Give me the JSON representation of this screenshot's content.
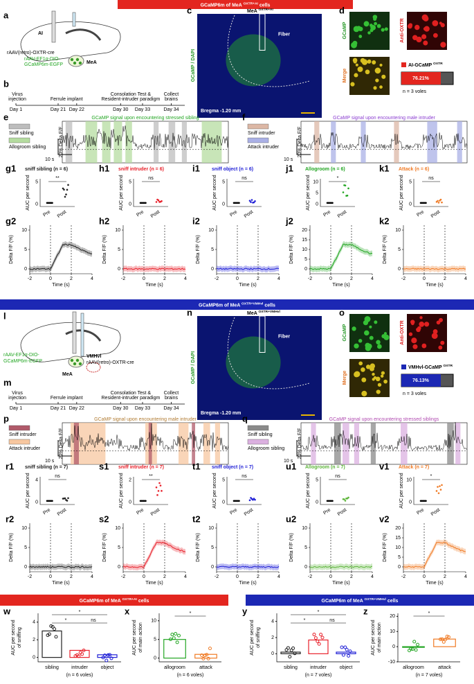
{
  "banners": {
    "top": {
      "pre": "GCaMP6m of MeA ",
      "sup": "OXTR+AI",
      "post": " cells"
    },
    "middle": {
      "pre": "GCaMP6m of MeA ",
      "sup": "OXTR+VMHvl",
      "post": " cells"
    },
    "bottom_left": {
      "pre": "GCaMP6m of MeA ",
      "sup": "OXTR+AI",
      "post": " cells"
    },
    "bottom_right": {
      "pre": "GCaMP6m of MeA ",
      "sup": "OXTR+VMHvl",
      "post": " cells"
    }
  },
  "panel_a": {
    "label": "a",
    "region": "AI",
    "virus1": "rAAV(retro)-OXTR-cre",
    "virus2a": "rAAV-EF1α-DIO-",
    "virus2b": "GCaMP6m-EGFP",
    "target": "MeA"
  },
  "panel_b": {
    "label": "b",
    "events": [
      "Virus",
      "injection",
      "Ferrule implant",
      "Consolation Test &",
      "Resident-intruder paradigm",
      "Collect",
      "brains"
    ],
    "days": [
      "Day 1",
      "Day 21",
      "Day 22",
      "Day 30",
      "Day 33",
      "Day 34"
    ]
  },
  "panel_c": {
    "label": "c",
    "title": "MeA ",
    "sup": "OXTR+AI",
    "stain": "GCaMP / DAPI",
    "fiber": "Fiber",
    "bregma": "Bregma -1.20 mm"
  },
  "panel_d": {
    "label": "d",
    "gcamp": "GCaMP",
    "anti": "Anti-OXTR",
    "merge": "Merge",
    "legend": "AI-GCaMP ",
    "legend_sup": "OXTR",
    "percent": "76.21%",
    "n": "n = 3 voles"
  },
  "panel_e": {
    "label": "e",
    "title": "GCaMP signal upon encountering stressed sibling",
    "legend": [
      "Sniff sibling",
      "Allogroom sibling"
    ],
    "colors": [
      "#bdbdbd",
      "#b5dca0"
    ],
    "scale_x": "10 s",
    "scale_y": "20% Delta F/F"
  },
  "panel_f": {
    "label": "f",
    "title": "GCaMP signal upon encountering male intruder",
    "legend": [
      "Sniff intruder",
      "Attack intruder"
    ],
    "colors": [
      "#dcb7a5",
      "#aab0e6"
    ],
    "scale_x": "10 s",
    "scale_y": "20% Delta F/F"
  },
  "common": {
    "auc": "AUC per second",
    "pre": "Pre",
    "post": "Post",
    "dff": "Delta F/F (%)",
    "time": "Time (s)",
    "xticks": [
      "-2",
      "0",
      "2",
      "4"
    ]
  },
  "row1": [
    {
      "label1": "g1",
      "label2": "g2",
      "title": "sniff sibling (n = 6)",
      "sig": "**",
      "color": "#222222",
      "inset_ticks": [
        "5",
        "0"
      ],
      "yticks": [
        "10",
        "5",
        "0"
      ]
    },
    {
      "label1": "h1",
      "label2": "h2",
      "title": "sniff intruder (n = 6)",
      "sig": "ns",
      "color": "#e8202a",
      "inset_ticks": [
        "5",
        "0"
      ],
      "yticks": [
        "10",
        "5",
        "0"
      ]
    },
    {
      "label1": "i1",
      "label2": "i2",
      "title": "sniff object (n = 6)",
      "sig": "ns",
      "color": "#1f1fd6",
      "inset_ticks": [
        "5",
        "0"
      ],
      "yticks": [
        "10",
        "5",
        "0"
      ]
    },
    {
      "label1": "j1",
      "label2": "j2",
      "title": "Allogroom (n = 6)",
      "sig": "*",
      "color": "#21a521",
      "inset_ticks": [
        "10",
        "5",
        "0"
      ],
      "yticks": [
        "20",
        "15",
        "10",
        "5",
        "0"
      ]
    },
    {
      "label1": "k1",
      "label2": "k2",
      "title": "Attack (n = 6)",
      "sig": "ns",
      "color": "#f07a24",
      "inset_ticks": [
        "5",
        "0"
      ],
      "yticks": [
        "10",
        "5",
        "0"
      ]
    }
  ],
  "panel_l": {
    "label": "l",
    "virus1a": "rAAV-EF1α-DIO-",
    "virus1b": "GCaMP6m-EGFP",
    "region": "VMHvl",
    "virus2": "rAAV(retro)-OXTR-cre",
    "target": "MeA"
  },
  "panel_m": {
    "label": "m",
    "events": [
      "Virus",
      "injection",
      "Ferrule implant",
      "Consolation Test &",
      "Resident-intruder paradigm",
      "Collect",
      "brains"
    ],
    "days": [
      "Day 1",
      "Day 21",
      "Day 22",
      "Day 30",
      "Day 33",
      "Day 34"
    ]
  },
  "panel_n": {
    "label": "n",
    "title": "MeA ",
    "sup": "OXTR+VMHvl",
    "stain": "GCaMP / DAPI",
    "fiber": "Fiber",
    "bregma": "Bregma -1.20 mm"
  },
  "panel_o": {
    "label": "o",
    "gcamp": "GCaMP",
    "anti": "Anti-OXTR",
    "merge": "Merge",
    "legend": "VMHvl-GCaMP ",
    "legend_sup": "OXTR",
    "percent": "76.13%",
    "n": "n = 3 voles"
  },
  "panel_p": {
    "label": "p",
    "title": "GCaMP signal upon encountering male intruder",
    "legend": [
      "Sniff  intruder",
      "Attack  intruder"
    ],
    "colors": [
      "#b05a6a",
      "#f7c7a0"
    ],
    "scale_x": "10 s",
    "scale_y": "20% Delta F/F"
  },
  "panel_q": {
    "label": "q",
    "title": "GCaMP signal upon encountering stressed siblings",
    "legend": [
      "Sniff sibling",
      "Allogroom sibling"
    ],
    "colors": [
      "#8a8a8a",
      "#dbb0e0"
    ],
    "scale_x": "10 s",
    "scale_y": "20% Delta F/F"
  },
  "row2": [
    {
      "label1": "r1",
      "label2": "r2",
      "title": "sniff sibling (n = 7)",
      "sig": "ns",
      "color": "#222222",
      "inset_ticks": [
        "4",
        "0"
      ],
      "yticks": [
        "10",
        "5",
        "0"
      ]
    },
    {
      "label1": "s1",
      "label2": "s2",
      "title": "sniff intruder (n = 7)",
      "sig": "**",
      "color": "#e8202a",
      "inset_ticks": [
        "2",
        "0"
      ],
      "yticks": [
        "10",
        "5",
        "0"
      ]
    },
    {
      "label1": "t1",
      "label2": "t2",
      "title": "sniff object (n = 7)",
      "sig": "ns",
      "color": "#1f1fd6",
      "inset_ticks": [
        "5",
        "0"
      ],
      "yticks": [
        "10",
        "5",
        "0"
      ]
    },
    {
      "label1": "u1",
      "label2": "u2",
      "title": "Allogroom (n = 7)",
      "sig": "ns",
      "color": "#5db53a",
      "inset_ticks": [
        "5",
        "0"
      ],
      "yticks": [
        "10",
        "5",
        "0"
      ]
    },
    {
      "label1": "v1",
      "label2": "v2",
      "title": "Attack (n = 7)",
      "sig": "*",
      "color": "#f07a24",
      "inset_ticks": [
        "10",
        "0"
      ],
      "yticks": [
        "20",
        "15",
        "10",
        "5",
        "0"
      ]
    }
  ],
  "bottom": [
    {
      "label": "w",
      "ylabel1": "AUC per second",
      "ylabel2": "of sniffing",
      "categories": [
        "sibling",
        "intruder",
        "object"
      ],
      "colors": [
        "#222222",
        "#e8202a",
        "#1f1fd6"
      ],
      "values": [
        3,
        0.8,
        0.3
      ],
      "ylim": [
        -0.5,
        5
      ],
      "yticks": [
        4,
        2,
        0
      ],
      "sigs": [
        "*",
        "*",
        "ns"
      ],
      "n": "(n = 6 voles)"
    },
    {
      "label": "x",
      "ylabel1": "AUC per second",
      "ylabel2": "of main action",
      "categories": [
        "allogroom",
        "attack"
      ],
      "colors": [
        "#21a521",
        "#f07a24"
      ],
      "values": [
        5,
        1
      ],
      "ylim": [
        -1,
        12
      ],
      "yticks": [
        10,
        5,
        0
      ],
      "sigs": [
        "*"
      ],
      "n": "(n = 6 voles)"
    },
    {
      "label": "y",
      "ylabel1": "AUC per second",
      "ylabel2": "of sniffing",
      "categories": [
        "sibling",
        "intruder",
        "object"
      ],
      "colors": [
        "#222222",
        "#e8202a",
        "#1f1fd6"
      ],
      "values": [
        0.2,
        1.7,
        0.2
      ],
      "ylim": [
        -1,
        5
      ],
      "yticks": [
        4,
        2,
        0
      ],
      "sigs": [
        "*",
        "*",
        "ns"
      ],
      "n": "(n = 7 voles)"
    },
    {
      "label": "z",
      "ylabel1": "AUC per second",
      "ylabel2": "of main action",
      "categories": [
        "allogroom",
        "attack"
      ],
      "colors": [
        "#21a521",
        "#f07a24"
      ],
      "values": [
        0,
        5
      ],
      "ylim": [
        -10,
        22
      ],
      "yticks": [
        20,
        10,
        0,
        -10
      ],
      "sigs": [
        "*"
      ],
      "n": "(n = 7 voles)"
    }
  ]
}
